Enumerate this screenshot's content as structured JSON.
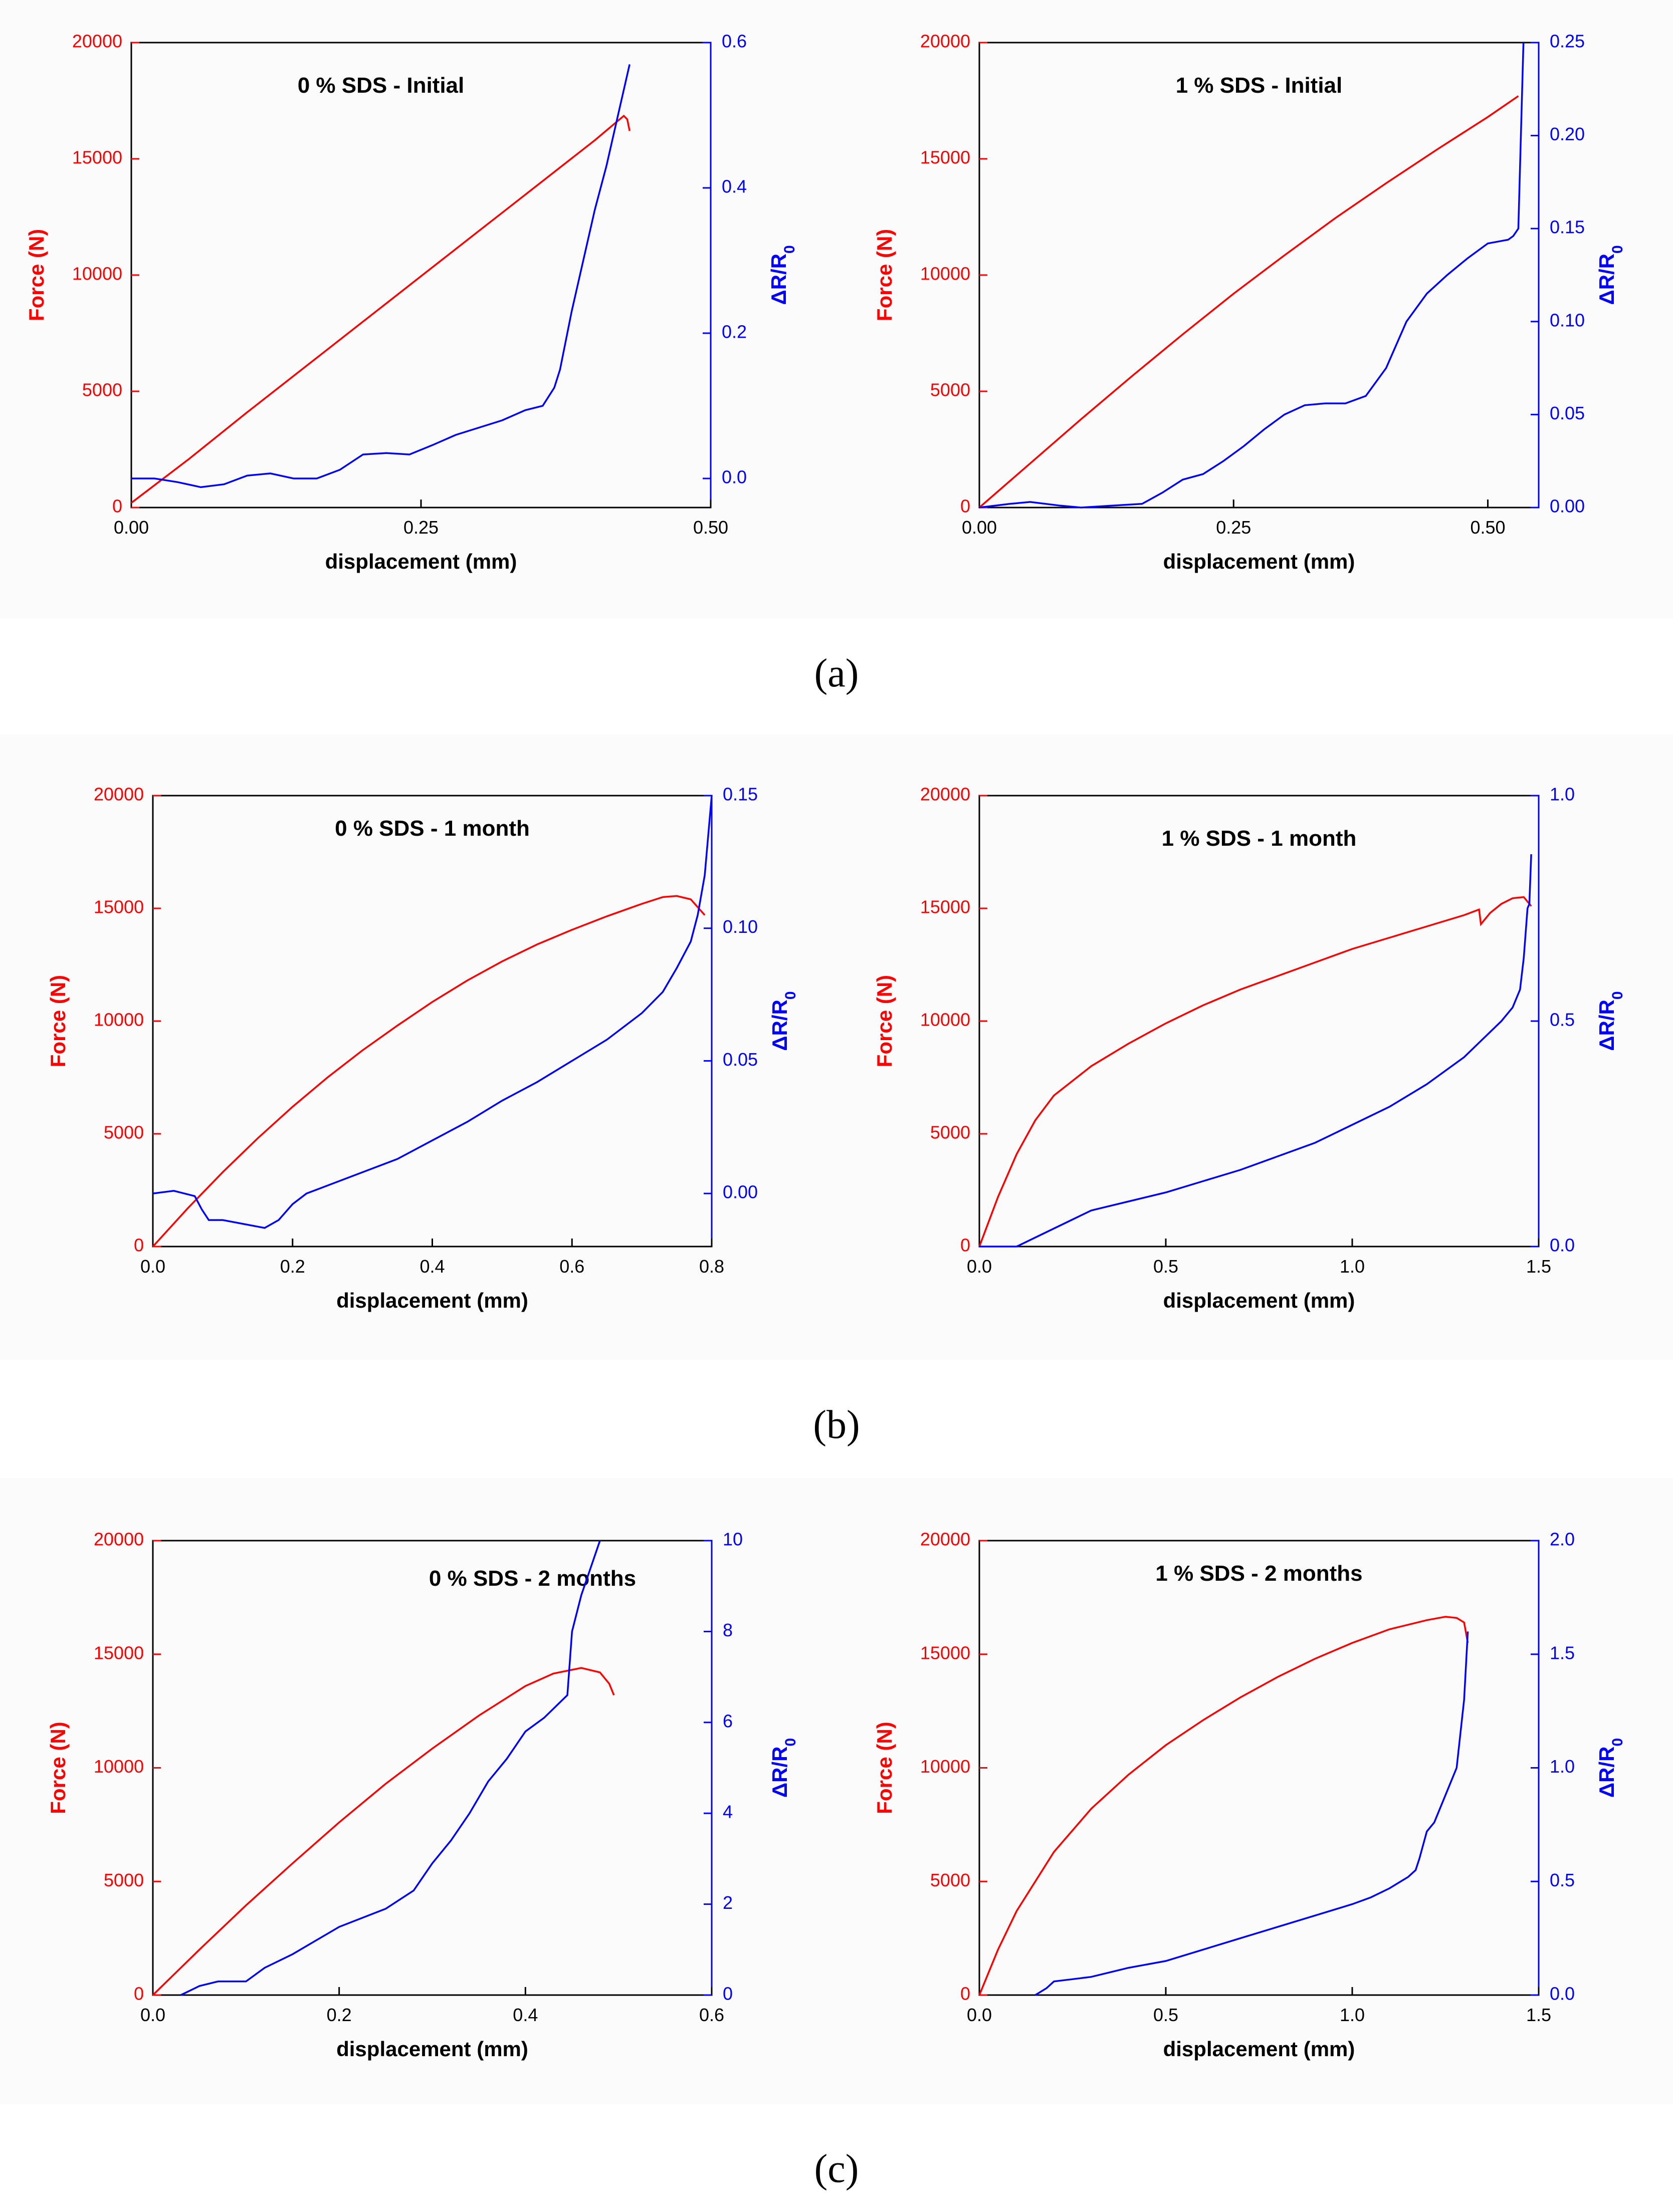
{
  "captions": [
    "(a)",
    "(b)",
    "(c)"
  ],
  "chart_data": [
    {
      "type": "line",
      "title": "0 % SDS - Initial",
      "xlabel": "displacement (mm)",
      "ylabel_left": "Force (N)",
      "ylabel_right": "ΔR/R0",
      "xlim": [
        0,
        0.5
      ],
      "xticks": [
        0,
        0.25,
        0.5
      ],
      "xtick_labels": [
        "0.00",
        "0.25",
        "0.50"
      ],
      "ylim_left": [
        0,
        20000
      ],
      "yticks_left": [
        0,
        5000,
        10000,
        15000,
        20000
      ],
      "ytick_labels_left": [
        "0",
        "5000",
        "10000",
        "15000",
        "20000"
      ],
      "ylim_right": [
        -0.04,
        0.6
      ],
      "yticks_right": [
        0,
        0.2,
        0.4,
        0.6
      ],
      "ytick_labels_right": [
        "0.0",
        "0.2",
        "0.4",
        "0.6"
      ],
      "colors": {
        "force": "#ff0000",
        "resistance": "#0000ff"
      },
      "series": [
        {
          "name": "Force",
          "axis": "left",
          "x": [
            0,
            0.05,
            0.1,
            0.15,
            0.2,
            0.25,
            0.3,
            0.35,
            0.4,
            0.425,
            0.428,
            0.43
          ],
          "y": [
            200,
            2100,
            4100,
            6050,
            8000,
            9950,
            11900,
            13850,
            15800,
            16850,
            16700,
            16200
          ]
        },
        {
          "name": "ΔR/R0",
          "axis": "right",
          "x": [
            0,
            0.02,
            0.04,
            0.06,
            0.08,
            0.1,
            0.12,
            0.14,
            0.16,
            0.18,
            0.2,
            0.22,
            0.24,
            0.26,
            0.28,
            0.3,
            0.32,
            0.34,
            0.355,
            0.365,
            0.37,
            0.38,
            0.39,
            0.4,
            0.41,
            0.42,
            0.43
          ],
          "y": [
            0,
            0,
            -0.005,
            -0.012,
            -0.008,
            0.004,
            0.007,
            0.0,
            0.0,
            0.012,
            0.033,
            0.035,
            0.033,
            0.046,
            0.06,
            0.07,
            0.08,
            0.094,
            0.1,
            0.125,
            0.15,
            0.23,
            0.3,
            0.37,
            0.43,
            0.5,
            0.57
          ]
        }
      ]
    },
    {
      "type": "line",
      "title": "1 % SDS - Initial",
      "xlabel": "displacement (mm)",
      "ylabel_left": "Force (N)",
      "ylabel_right": "ΔR/R0",
      "xlim": [
        0,
        0.55
      ],
      "xticks": [
        0,
        0.25,
        0.5
      ],
      "xtick_labels": [
        "0.00",
        "0.25",
        "0.50"
      ],
      "ylim_left": [
        0,
        20000
      ],
      "yticks_left": [
        0,
        5000,
        10000,
        15000,
        20000
      ],
      "ytick_labels_left": [
        "0",
        "5000",
        "10000",
        "15000",
        "20000"
      ],
      "ylim_right": [
        0,
        0.25
      ],
      "yticks_right": [
        0,
        0.05,
        0.1,
        0.15,
        0.2,
        0.25
      ],
      "ytick_labels_right": [
        "0.00",
        "0.05",
        "0.10",
        "0.15",
        "0.20",
        "0.25"
      ],
      "colors": {
        "force": "#ff0000",
        "resistance": "#0000ff"
      },
      "series": [
        {
          "name": "Force",
          "axis": "left",
          "x": [
            0,
            0.05,
            0.1,
            0.15,
            0.2,
            0.25,
            0.3,
            0.35,
            0.4,
            0.45,
            0.5,
            0.53
          ],
          "y": [
            0,
            1900,
            3800,
            5650,
            7450,
            9200,
            10850,
            12450,
            13950,
            15400,
            16800,
            17700
          ]
        },
        {
          "name": "ΔR/R0",
          "axis": "right",
          "x": [
            0,
            0.03,
            0.05,
            0.08,
            0.1,
            0.13,
            0.16,
            0.18,
            0.2,
            0.22,
            0.24,
            0.26,
            0.28,
            0.3,
            0.32,
            0.34,
            0.36,
            0.38,
            0.4,
            0.42,
            0.44,
            0.46,
            0.48,
            0.5,
            0.51,
            0.52,
            0.525,
            0.53,
            0.535
          ],
          "y": [
            0,
            0.002,
            0.003,
            0.001,
            0.0,
            0.001,
            0.002,
            0.008,
            0.015,
            0.018,
            0.025,
            0.033,
            0.042,
            0.05,
            0.055,
            0.056,
            0.056,
            0.06,
            0.075,
            0.1,
            0.115,
            0.125,
            0.134,
            0.142,
            0.143,
            0.144,
            0.146,
            0.15,
            0.25
          ]
        }
      ]
    },
    {
      "type": "line",
      "title": "0 % SDS - 1 month",
      "xlabel": "displacement (mm)",
      "ylabel_left": "Force (N)",
      "ylabel_right": "ΔR/R0",
      "xlim": [
        0,
        0.8
      ],
      "xticks": [
        0,
        0.2,
        0.4,
        0.6,
        0.8
      ],
      "xtick_labels": [
        "0.0",
        "0.2",
        "0.4",
        "0.6",
        "0.8"
      ],
      "ylim_left": [
        0,
        20000
      ],
      "yticks_left": [
        0,
        5000,
        10000,
        15000,
        20000
      ],
      "ytick_labels_left": [
        "0",
        "5000",
        "10000",
        "15000",
        "20000"
      ],
      "ylim_right": [
        -0.02,
        0.15
      ],
      "yticks_right": [
        0,
        0.05,
        0.1,
        0.15
      ],
      "ytick_labels_right": [
        "0.00",
        "0.05",
        "0.10",
        "0.15"
      ],
      "colors": {
        "force": "#ff0000",
        "resistance": "#0000ff"
      },
      "series": [
        {
          "name": "Force",
          "axis": "left",
          "x": [
            0,
            0.05,
            0.1,
            0.15,
            0.2,
            0.25,
            0.3,
            0.35,
            0.4,
            0.45,
            0.5,
            0.55,
            0.6,
            0.65,
            0.7,
            0.73,
            0.75,
            0.77,
            0.79
          ],
          "y": [
            0,
            1700,
            3300,
            4800,
            6200,
            7500,
            8700,
            9800,
            10850,
            11800,
            12650,
            13400,
            14050,
            14650,
            15200,
            15500,
            15550,
            15400,
            14700
          ]
        },
        {
          "name": "ΔR/R0",
          "axis": "right",
          "x": [
            0,
            0.03,
            0.06,
            0.07,
            0.08,
            0.1,
            0.12,
            0.14,
            0.16,
            0.18,
            0.2,
            0.22,
            0.25,
            0.3,
            0.35,
            0.4,
            0.45,
            0.5,
            0.55,
            0.6,
            0.65,
            0.7,
            0.73,
            0.75,
            0.76,
            0.77,
            0.78,
            0.79,
            0.8
          ],
          "y": [
            0.0,
            0.001,
            -0.001,
            -0.006,
            -0.01,
            -0.01,
            -0.011,
            -0.012,
            -0.013,
            -0.01,
            -0.004,
            0.0,
            0.003,
            0.008,
            0.013,
            0.02,
            0.027,
            0.035,
            0.042,
            0.05,
            0.058,
            0.068,
            0.076,
            0.085,
            0.09,
            0.095,
            0.105,
            0.12,
            0.15
          ]
        }
      ]
    },
    {
      "type": "line",
      "title": "1 % SDS - 1 month",
      "xlabel": "displacement (mm)",
      "ylabel_left": "Force (N)",
      "ylabel_right": "ΔR/R0",
      "xlim": [
        0,
        1.5
      ],
      "xticks": [
        0,
        0.5,
        1.0,
        1.5
      ],
      "xtick_labels": [
        "0.0",
        "0.5",
        "1.0",
        "1.5"
      ],
      "ylim_left": [
        0,
        20000
      ],
      "yticks_left": [
        0,
        5000,
        10000,
        15000,
        20000
      ],
      "ytick_labels_left": [
        "0",
        "5000",
        "10000",
        "15000",
        "20000"
      ],
      "ylim_right": [
        0,
        1.0
      ],
      "yticks_right": [
        0,
        0.5,
        1.0
      ],
      "ytick_labels_right": [
        "0.0",
        "0.5",
        "1.0"
      ],
      "colors": {
        "force": "#ff0000",
        "resistance": "#0000ff"
      },
      "series": [
        {
          "name": "Force",
          "axis": "left",
          "x": [
            0,
            0.05,
            0.1,
            0.15,
            0.2,
            0.3,
            0.4,
            0.5,
            0.6,
            0.7,
            0.8,
            0.9,
            1.0,
            1.1,
            1.2,
            1.3,
            1.34,
            1.345,
            1.37,
            1.4,
            1.43,
            1.46,
            1.48
          ],
          "y": [
            0,
            2200,
            4100,
            5600,
            6700,
            8000,
            9000,
            9900,
            10700,
            11400,
            12000,
            12600,
            13200,
            13700,
            14200,
            14700,
            14950,
            14300,
            14800,
            15200,
            15450,
            15500,
            15100
          ]
        },
        {
          "name": "ΔR/R0",
          "axis": "right",
          "x": [
            0,
            0.05,
            0.1,
            0.15,
            0.2,
            0.25,
            0.3,
            0.4,
            0.5,
            0.6,
            0.7,
            0.8,
            0.9,
            1.0,
            1.1,
            1.2,
            1.3,
            1.35,
            1.4,
            1.43,
            1.45,
            1.46,
            1.47,
            1.475,
            1.48
          ],
          "y": [
            -0.02,
            -0.02,
            0.0,
            0.02,
            0.04,
            0.06,
            0.08,
            0.1,
            0.12,
            0.145,
            0.17,
            0.2,
            0.23,
            0.27,
            0.31,
            0.36,
            0.42,
            0.46,
            0.5,
            0.53,
            0.57,
            0.64,
            0.75,
            0.76,
            0.87
          ]
        }
      ]
    },
    {
      "type": "line",
      "title": "0 % SDS - 2 months",
      "xlabel": "displacement (mm)",
      "ylabel_left": "Force (N)",
      "ylabel_right": "ΔR/R0",
      "xlim": [
        0,
        0.6
      ],
      "xticks": [
        0,
        0.2,
        0.4,
        0.6
      ],
      "xtick_labels": [
        "0.0",
        "0.2",
        "0.4",
        "0.6"
      ],
      "ylim_left": [
        0,
        20000
      ],
      "yticks_left": [
        0,
        5000,
        10000,
        15000,
        20000
      ],
      "ytick_labels_left": [
        "0",
        "5000",
        "10000",
        "15000",
        "20000"
      ],
      "ylim_right": [
        0,
        10
      ],
      "yticks_right": [
        0,
        2,
        4,
        6,
        8,
        10
      ],
      "ytick_labels_right": [
        "0",
        "2",
        "4",
        "6",
        "8",
        "10"
      ],
      "colors": {
        "force": "#ff0000",
        "resistance": "#0000ff"
      },
      "series": [
        {
          "name": "Force",
          "axis": "left",
          "x": [
            0,
            0.05,
            0.1,
            0.15,
            0.2,
            0.25,
            0.3,
            0.35,
            0.4,
            0.43,
            0.46,
            0.48,
            0.49,
            0.495
          ],
          "y": [
            0,
            2000,
            3950,
            5800,
            7600,
            9300,
            10850,
            12300,
            13600,
            14150,
            14400,
            14200,
            13700,
            13200
          ]
        },
        {
          "name": "ΔR/R0",
          "axis": "right",
          "x": [
            0.03,
            0.05,
            0.07,
            0.1,
            0.12,
            0.15,
            0.2,
            0.25,
            0.28,
            0.3,
            0.32,
            0.34,
            0.36,
            0.38,
            0.4,
            0.42,
            0.44,
            0.445,
            0.45,
            0.46,
            0.47,
            0.48
          ],
          "y": [
            0,
            0.2,
            0.3,
            0.3,
            0.6,
            0.9,
            1.5,
            1.9,
            2.3,
            2.9,
            3.4,
            4.0,
            4.7,
            5.2,
            5.8,
            6.1,
            6.5,
            6.6,
            8.0,
            8.8,
            9.4,
            10.0
          ]
        }
      ]
    },
    {
      "type": "line",
      "title": "1 % SDS - 2 months",
      "xlabel": "displacement (mm)",
      "ylabel_left": "Force (N)",
      "ylabel_right": "ΔR/R0",
      "xlim": [
        0,
        1.5
      ],
      "xticks": [
        0,
        0.5,
        1.0,
        1.5
      ],
      "xtick_labels": [
        "0.0",
        "0.5",
        "1.0",
        "1.5"
      ],
      "ylim_left": [
        0,
        20000
      ],
      "yticks_left": [
        0,
        5000,
        10000,
        15000,
        20000
      ],
      "ytick_labels_left": [
        "0",
        "5000",
        "10000",
        "15000",
        "20000"
      ],
      "ylim_right": [
        0,
        2.0
      ],
      "yticks_right": [
        0,
        0.5,
        1.0,
        1.5,
        2.0
      ],
      "ytick_labels_right": [
        "0.0",
        "0.5",
        "1.0",
        "1.5",
        "2.0"
      ],
      "colors": {
        "force": "#ff0000",
        "resistance": "#0000ff"
      },
      "series": [
        {
          "name": "Force",
          "axis": "left",
          "x": [
            0,
            0.05,
            0.1,
            0.2,
            0.3,
            0.4,
            0.5,
            0.6,
            0.7,
            0.8,
            0.9,
            1.0,
            1.1,
            1.2,
            1.25,
            1.28,
            1.3,
            1.31
          ],
          "y": [
            0,
            2000,
            3700,
            6300,
            8200,
            9700,
            11000,
            12100,
            13100,
            14000,
            14800,
            15500,
            16100,
            16500,
            16650,
            16600,
            16400,
            15500
          ]
        },
        {
          "name": "ΔR/R0",
          "axis": "right",
          "x": [
            0.15,
            0.18,
            0.2,
            0.25,
            0.3,
            0.4,
            0.5,
            0.6,
            0.7,
            0.8,
            0.9,
            1.0,
            1.05,
            1.1,
            1.15,
            1.17,
            1.18,
            1.2,
            1.22,
            1.25,
            1.28,
            1.3,
            1.31
          ],
          "y": [
            0,
            0.03,
            0.06,
            0.07,
            0.08,
            0.12,
            0.15,
            0.2,
            0.25,
            0.3,
            0.35,
            0.4,
            0.43,
            0.47,
            0.52,
            0.55,
            0.6,
            0.72,
            0.76,
            0.88,
            1.0,
            1.3,
            1.6
          ]
        }
      ]
    }
  ]
}
